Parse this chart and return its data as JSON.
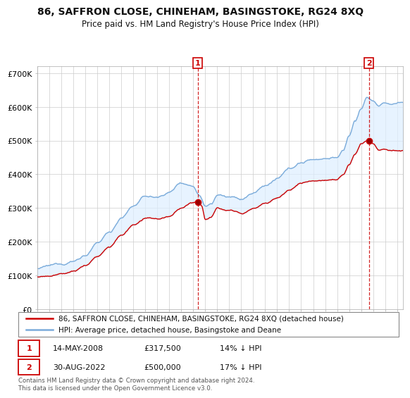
{
  "title": "86, SAFFRON CLOSE, CHINEHAM, BASINGSTOKE, RG24 8XQ",
  "subtitle": "Price paid vs. HM Land Registry's House Price Index (HPI)",
  "ylabel_ticks": [
    "£0",
    "£100K",
    "£200K",
    "£300K",
    "£400K",
    "£500K",
    "£600K",
    "£700K"
  ],
  "ytick_values": [
    0,
    100000,
    200000,
    300000,
    400000,
    500000,
    600000,
    700000
  ],
  "ylim": [
    0,
    720000
  ],
  "sale1_date": "14-MAY-2008",
  "sale1_price": "£317,500",
  "sale1_pct": "14% ↓ HPI",
  "sale2_date": "30-AUG-2022",
  "sale2_price": "£500,000",
  "sale2_pct": "17% ↓ HPI",
  "legend_property": "86, SAFFRON CLOSE, CHINEHAM, BASINGSTOKE, RG24 8XQ (detached house)",
  "legend_hpi": "HPI: Average price, detached house, Basingstoke and Deane",
  "footer": "Contains HM Land Registry data © Crown copyright and database right 2024.\nThis data is licensed under the Open Government Licence v3.0.",
  "property_color": "#cc0000",
  "hpi_color": "#7aabda",
  "fill_color": "#ddeeff",
  "background_color": "#ffffff",
  "sale1_x": 2008.37,
  "sale2_x": 2022.66,
  "xmin": 1995,
  "xmax": 2025.5
}
